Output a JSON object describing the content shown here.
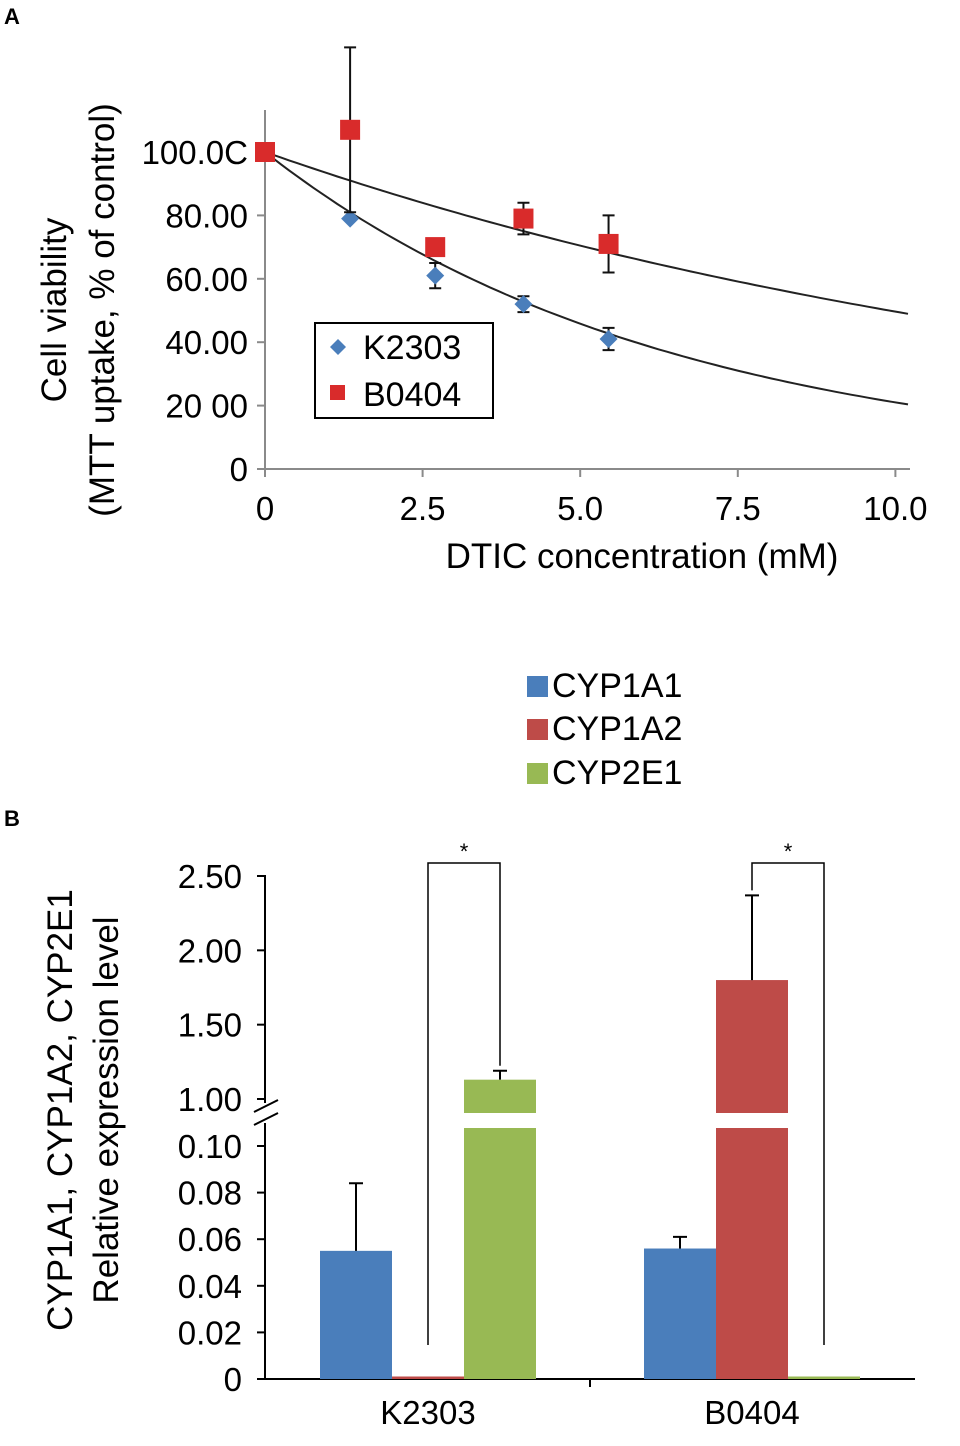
{
  "panel_a": {
    "label": "A",
    "chart_data": {
      "type": "scatter",
      "title": "",
      "xlabel": "DTIC concentration (mM)",
      "ylabel_line1": "Cell viability",
      "ylabel_line2": "(MTT uptake, % of control)",
      "xlim": [
        0,
        10.2
      ],
      "ylim": [
        0,
        110
      ],
      "x_ticks": [
        0,
        2.5,
        5.0,
        7.5,
        10.0
      ],
      "x_tick_labels": [
        "0",
        "2.5",
        "5.0",
        "7.5",
        "10.0"
      ],
      "y_ticks": [
        0,
        20,
        40,
        60,
        80,
        100
      ],
      "y_tick_labels": [
        "0",
        "20 00",
        "40.00",
        "60.00",
        "80.00",
        "100.0C"
      ],
      "series": [
        {
          "name": "K2303",
          "marker": "diamond",
          "color": "#4a7ebb",
          "x": [
            0,
            1.35,
            2.7,
            4.1,
            5.45
          ],
          "y": [
            100,
            79,
            61,
            52,
            41
          ],
          "err": [
            0,
            0,
            4,
            2.5,
            3.5
          ],
          "fit": {
            "model": "exp",
            "k": 0.156
          }
        },
        {
          "name": "B0404",
          "marker": "square",
          "color": "#d92b2b",
          "x": [
            0,
            1.35,
            2.7,
            4.1,
            5.45
          ],
          "y": [
            100,
            107,
            70,
            79,
            71
          ],
          "err": [
            0,
            26,
            0,
            5,
            9
          ],
          "fit": {
            "model": "exp",
            "k": 0.07
          }
        }
      ],
      "legend": [
        "K2303",
        "B0404"
      ]
    }
  },
  "panel_b": {
    "label": "B",
    "chart_data": {
      "type": "bar",
      "title": "",
      "ylabel_line1": "CYP1A1, CYP1A2, CYP2E1",
      "ylabel_line2": "Relative expression level",
      "categories": [
        "K2303",
        "B0404"
      ],
      "axis_break": true,
      "lower_ylim": [
        0,
        0.1
      ],
      "upper_ylim": [
        1.0,
        2.5
      ],
      "lower_ticks": [
        0,
        0.02,
        0.04,
        0.06,
        0.08,
        0.1
      ],
      "lower_tick_labels": [
        "0",
        "0.02",
        "0.04",
        "0.06",
        "0.08",
        "0.10"
      ],
      "upper_ticks": [
        1.0,
        1.5,
        2.0,
        2.5
      ],
      "upper_tick_labels": [
        "1.00",
        "1.50",
        "2.00",
        "2.50"
      ],
      "series": [
        {
          "name": "CYP1A1",
          "color": "#4a7ebb",
          "values": [
            0.055,
            0.056
          ],
          "err": [
            0.029,
            0.005
          ]
        },
        {
          "name": "CYP1A2",
          "color": "#be4b48",
          "values": [
            0.001,
            1.8
          ],
          "err": [
            0,
            0.57
          ]
        },
        {
          "name": "CYP2E1",
          "color": "#98b954",
          "values": [
            1.13,
            0.001
          ],
          "err": [
            0.06,
            0
          ]
        }
      ],
      "significance_marks": [
        {
          "category": "K2303",
          "between": [
            "CYP1A2",
            "CYP2E1"
          ],
          "label": "*"
        },
        {
          "category": "B0404",
          "between": [
            "CYP1A2",
            "CYP2E1"
          ],
          "label": "*"
        }
      ],
      "legend": [
        "CYP1A1",
        "CYP1A2",
        "CYP2E1"
      ]
    }
  }
}
